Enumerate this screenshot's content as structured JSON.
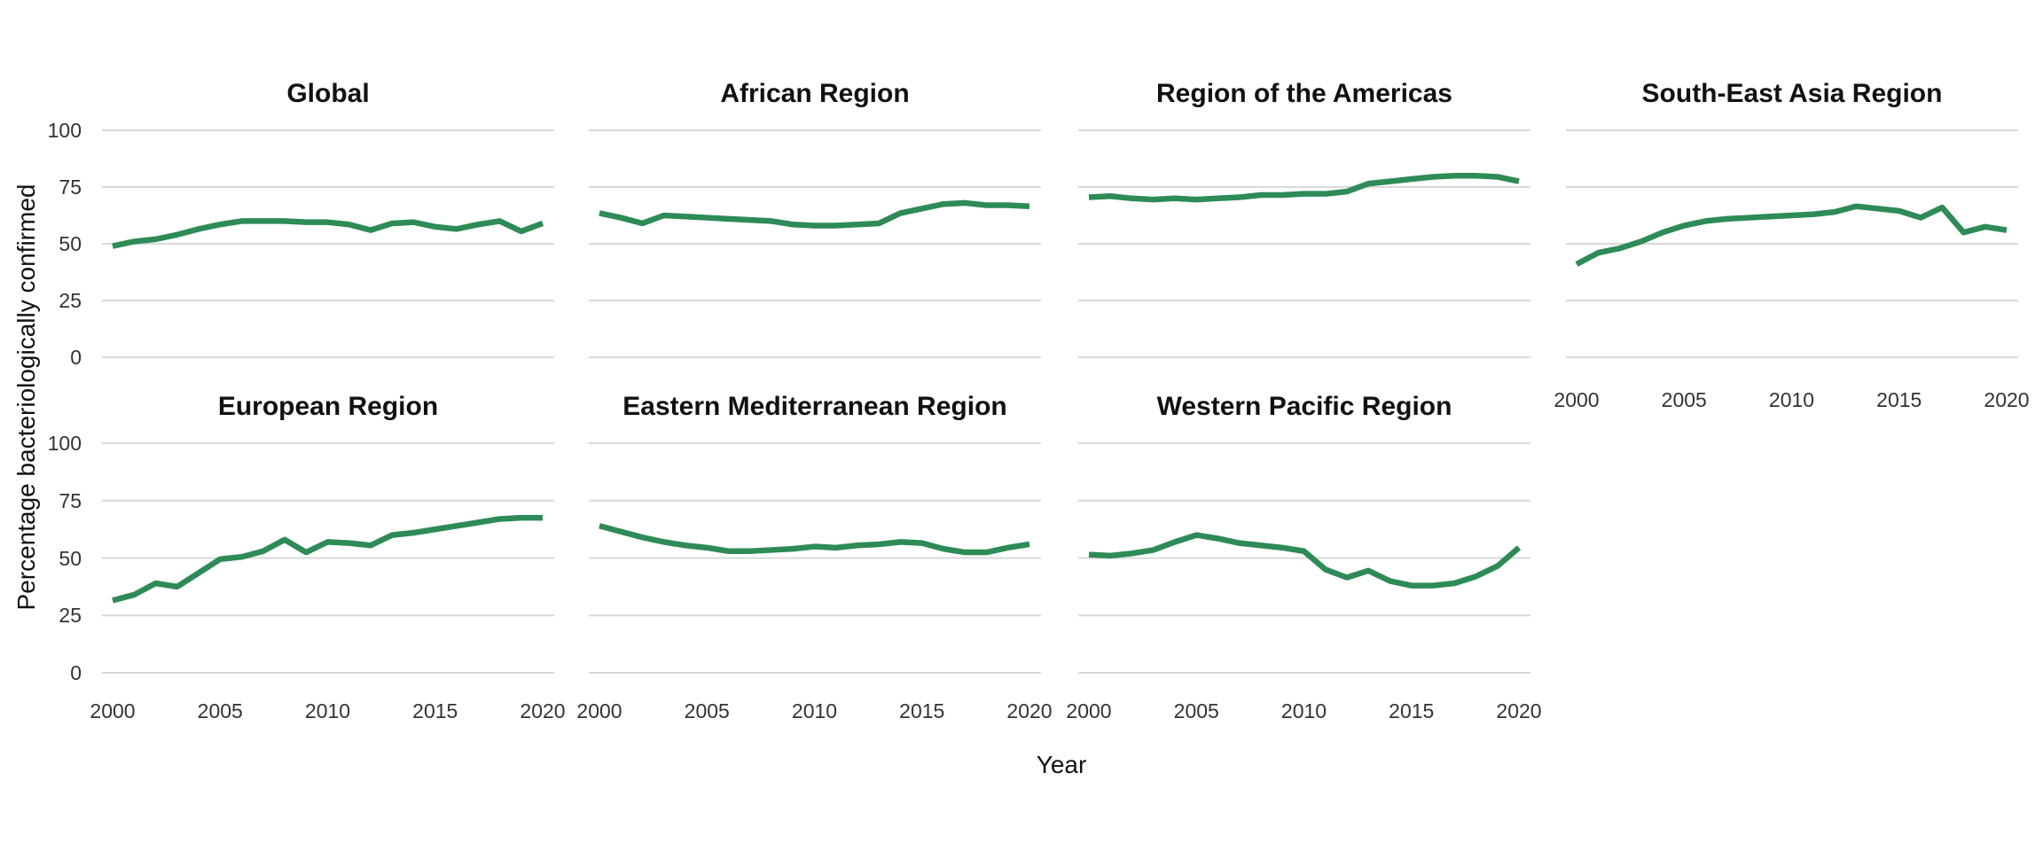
{
  "figure": {
    "y_axis_label": "Percentage bacteriologically confirmed",
    "x_axis_label": "Year",
    "line_color": "#2e8b57",
    "gridline_color": "#d9d9d9",
    "background_color": "#ffffff",
    "title_color": "#111111",
    "tick_label_color": "#333333"
  },
  "chart_data": {
    "type": "line",
    "layout": "facet-grid small multiples, 4 columns x 2 rows",
    "xlabel": "Year",
    "ylabel": "Percentage bacteriologically confirmed",
    "x": [
      2000,
      2001,
      2002,
      2003,
      2004,
      2005,
      2006,
      2007,
      2008,
      2009,
      2010,
      2011,
      2012,
      2013,
      2014,
      2015,
      2016,
      2017,
      2018,
      2019,
      2020
    ],
    "x_tick_labels": [
      "2000",
      "2005",
      "2010",
      "2015",
      "2020"
    ],
    "y_ticks": [
      0,
      25,
      50,
      75,
      100
    ],
    "ylim": [
      0,
      100
    ],
    "grid": "horizontal-major-only",
    "legend": "none",
    "facets": [
      {
        "title": "Global",
        "row": 0,
        "col": 0,
        "show_y_axis": true,
        "show_x_axis": false,
        "values": [
          49,
          51,
          52,
          54,
          56.5,
          58.5,
          60,
          60,
          60,
          59.5,
          59.5,
          58.5,
          56,
          59,
          59.5,
          57.5,
          56.5,
          58.5,
          60,
          55.5,
          59
        ]
      },
      {
        "title": "African Region",
        "row": 0,
        "col": 1,
        "show_y_axis": false,
        "show_x_axis": false,
        "values": [
          63.5,
          61.5,
          59,
          62.5,
          62,
          61.5,
          61,
          60.5,
          60,
          58.5,
          58,
          58,
          58.5,
          59,
          63.5,
          65.5,
          67.5,
          68,
          67,
          67,
          66.5
        ]
      },
      {
        "title": "Region of the Americas",
        "row": 0,
        "col": 2,
        "show_y_axis": false,
        "show_x_axis": false,
        "values": [
          70.5,
          71,
          70,
          69.5,
          70,
          69.5,
          70,
          70.5,
          71.5,
          71.5,
          72,
          72,
          73,
          76.5,
          77.5,
          78.5,
          79.5,
          80,
          80,
          79.5,
          77.5
        ]
      },
      {
        "title": "South-East Asia Region",
        "row": 0,
        "col": 3,
        "show_y_axis": false,
        "show_x_axis": true,
        "values": [
          41,
          46,
          48,
          51,
          55,
          58,
          60,
          61,
          61.5,
          62,
          62.5,
          63,
          64,
          66.5,
          65.5,
          64.5,
          61.5,
          66,
          55,
          57.5,
          56
        ]
      },
      {
        "title": "European Region",
        "row": 1,
        "col": 0,
        "show_y_axis": true,
        "show_x_axis": true,
        "values": [
          31.5,
          34,
          39,
          37.5,
          43.5,
          49.5,
          50.5,
          53,
          58,
          52.5,
          57,
          56.5,
          55.5,
          60,
          61,
          62.5,
          64,
          65.5,
          67,
          67.5,
          67.5
        ]
      },
      {
        "title": "Eastern Mediterranean Region",
        "row": 1,
        "col": 1,
        "show_y_axis": false,
        "show_x_axis": true,
        "values": [
          64,
          61.5,
          59,
          57,
          55.5,
          54.5,
          53,
          53,
          53.5,
          54,
          55,
          54.5,
          55.5,
          56,
          57,
          56.5,
          54,
          52.5,
          52.5,
          54.5,
          56
        ]
      },
      {
        "title": "Western Pacific Region",
        "row": 1,
        "col": 2,
        "show_y_axis": false,
        "show_x_axis": true,
        "values": [
          51.5,
          51,
          52,
          53.5,
          57,
          60,
          58.5,
          56.5,
          55.5,
          54.5,
          53,
          45,
          41.5,
          44.5,
          40,
          38,
          38,
          39,
          42,
          46.5,
          54.5
        ]
      }
    ]
  }
}
